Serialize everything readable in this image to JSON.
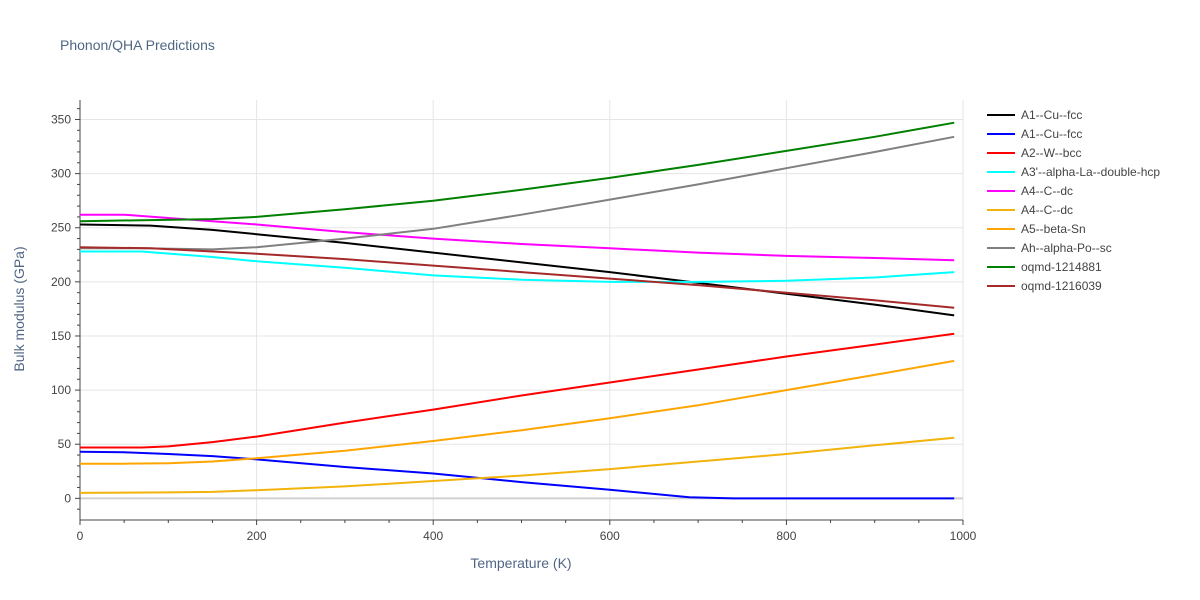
{
  "chart_data": {
    "type": "line",
    "title": "Phonon/QHA Predictions",
    "xlabel": "Temperature (K)",
    "ylabel": "Bulk modulus (GPa)",
    "xlim": [
      0,
      1000
    ],
    "ylim": [
      -20,
      368
    ],
    "xticks": [
      0,
      200,
      400,
      600,
      800,
      1000
    ],
    "yticks": [
      0,
      50,
      100,
      150,
      200,
      250,
      300,
      350
    ],
    "grid": true,
    "legend_position": "right",
    "series": [
      {
        "name": "A1--Cu--fcc",
        "color": "#000000",
        "x": [
          0,
          80,
          150,
          200,
          300,
          400,
          500,
          600,
          700,
          800,
          900,
          990
        ],
        "y": [
          253,
          252,
          248,
          244,
          236,
          227,
          218,
          209,
          199,
          189,
          179,
          169
        ]
      },
      {
        "name": "A1--Cu--fcc",
        "color": "#0000ff",
        "x": [
          0,
          50,
          100,
          150,
          200,
          300,
          400,
          500,
          600,
          690,
          740,
          800,
          900,
          990
        ],
        "y": [
          43,
          42.5,
          41,
          39,
          36,
          29,
          23,
          15,
          8,
          1,
          0,
          0,
          0,
          0
        ]
      },
      {
        "name": "A2--W--bcc",
        "color": "#ff0000",
        "x": [
          0,
          70,
          100,
          150,
          200,
          300,
          400,
          500,
          600,
          700,
          800,
          900,
          990
        ],
        "y": [
          47,
          47,
          48,
          52,
          57,
          70,
          82,
          95,
          107,
          119,
          131,
          142,
          152
        ]
      },
      {
        "name": "A3'--alpha-La--double-hcp",
        "color": "#00ffff",
        "x": [
          0,
          70,
          150,
          200,
          300,
          400,
          500,
          600,
          700,
          800,
          900,
          990
        ],
        "y": [
          228,
          228,
          223,
          219,
          213,
          206,
          202,
          200,
          200,
          201,
          204,
          209
        ]
      },
      {
        "name": "A4--C--dc",
        "color": "#ff00ff",
        "x": [
          0,
          50,
          100,
          200,
          300,
          400,
          500,
          600,
          700,
          800,
          900,
          990
        ],
        "y": [
          262,
          262,
          259,
          253,
          246,
          240,
          235,
          231,
          227,
          224,
          222,
          220
        ]
      },
      {
        "name": "A4--C--dc",
        "color": "#f2b40c",
        "x": [
          0,
          100,
          150,
          200,
          300,
          400,
          500,
          600,
          700,
          800,
          900,
          990
        ],
        "y": [
          5,
          5.5,
          6,
          7.5,
          11,
          16,
          21,
          27,
          34,
          41,
          49,
          56
        ]
      },
      {
        "name": "A5--beta-Sn",
        "color": "#ffa500",
        "x": [
          0,
          50,
          100,
          150,
          200,
          300,
          400,
          500,
          600,
          700,
          800,
          900,
          990
        ],
        "y": [
          32,
          32,
          32.5,
          34,
          37,
          44,
          53,
          63,
          74,
          86,
          100,
          114,
          127
        ]
      },
      {
        "name": "Ah--alpha-Po--sc",
        "color": "#808080",
        "x": [
          0,
          70,
          150,
          200,
          300,
          400,
          500,
          600,
          700,
          800,
          900,
          990
        ],
        "y": [
          231,
          231,
          230,
          232,
          240,
          249,
          262,
          276,
          290,
          305,
          320,
          334
        ]
      },
      {
        "name": "oqmd-1214881",
        "color": "#008000",
        "x": [
          0,
          70,
          150,
          200,
          300,
          400,
          500,
          600,
          700,
          800,
          900,
          990
        ],
        "y": [
          256,
          257,
          258,
          260,
          267,
          275,
          285,
          296,
          308,
          321,
          334,
          347
        ]
      },
      {
        "name": "oqmd-1216039",
        "color": "#a52a2a",
        "x": [
          0,
          80,
          150,
          200,
          300,
          400,
          500,
          600,
          700,
          800,
          900,
          990
        ],
        "y": [
          232,
          231,
          228,
          226,
          221,
          215,
          209,
          203,
          197,
          190,
          183,
          176
        ]
      }
    ]
  }
}
